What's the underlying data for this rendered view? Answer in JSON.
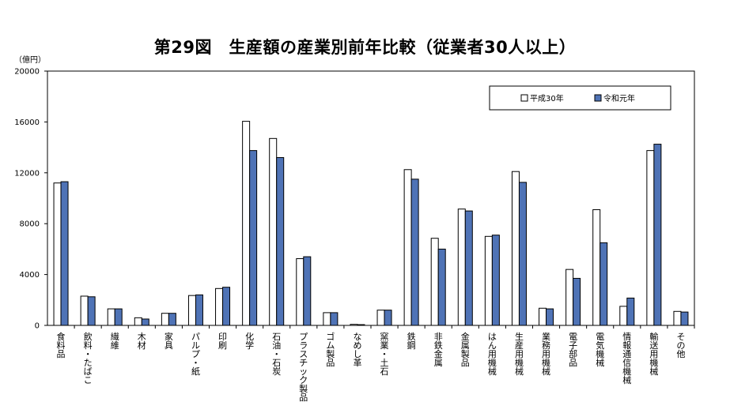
{
  "chart_data": {
    "type": "bar",
    "title": "第29図　生産額の産業別前年比較（従業者30人以上）",
    "unit": "（億円）",
    "ylim": [
      0,
      20000
    ],
    "yticks": [
      0,
      4000,
      8000,
      12000,
      16000,
      20000
    ],
    "legend_position": "top-right",
    "categories": [
      "食料品",
      "飲料・たばこ",
      "繊維",
      "木材",
      "家具",
      "パルプ・紙",
      "印刷",
      "化学",
      "石油・石炭",
      "プラスチック製品",
      "ゴム製品",
      "なめし革",
      "窯業・土石",
      "鉄鋼",
      "非鉄金属",
      "金属製品",
      "はん用機械",
      "生産用機械",
      "業務用機械",
      "電子部品",
      "電気機械",
      "情報通信機械",
      "輸送用機械",
      "その他"
    ],
    "series": [
      {
        "name": "平成30年",
        "color": "#ffffff",
        "values": [
          11200,
          2300,
          1300,
          600,
          950,
          2350,
          2900,
          16050,
          14700,
          5250,
          1000,
          80,
          1200,
          12250,
          6850,
          9150,
          7000,
          12100,
          1350,
          4400,
          9100,
          1500,
          13750,
          1100
        ]
      },
      {
        "name": "令和元年",
        "color": "#4f73b6",
        "values": [
          11300,
          2250,
          1300,
          500,
          950,
          2400,
          3000,
          13750,
          13200,
          5400,
          1000,
          60,
          1200,
          11500,
          6000,
          9000,
          7100,
          11250,
          1300,
          3700,
          6500,
          2150,
          14250,
          1050
        ]
      }
    ]
  }
}
